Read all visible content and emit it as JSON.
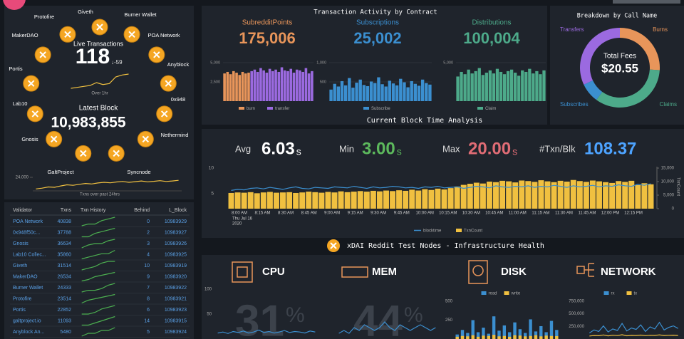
{
  "left_panel": {
    "nodes": [
      "Giveth",
      "Burner Wallet",
      "POA Network",
      "Anyblock",
      "0x948",
      "Nethermind",
      "Syncnode",
      "GaltProject",
      "Gnosis",
      "Lab10",
      "Portis",
      "MakerDAO",
      "Protofire"
    ],
    "live_label": "Live Transactions",
    "live_value": 118,
    "live_delta": "↓-59",
    "live_caption": "Over 1hr",
    "live_history": [
      80,
      85,
      90,
      95,
      110,
      100,
      105,
      140,
      150,
      155
    ],
    "block_label": "Latest Block",
    "block_value": "10,983,855",
    "daily": {
      "caption": "Txns over past 24hrs",
      "ylim": [
        15000,
        30000
      ],
      "yticks": [
        {
          "value": 24000,
          "label": "24,000"
        }
      ],
      "values": [
        17000,
        17500,
        18200,
        18000,
        18800,
        19500,
        19200,
        19800,
        20300,
        20000,
        20600,
        21000,
        20700,
        21200,
        21500,
        21000,
        21400,
        21800,
        21300,
        21600,
        22000,
        21500,
        21800,
        22200
      ]
    }
  },
  "table": {
    "headers": [
      "Validator",
      "Txns",
      "Txn History",
      "Behind",
      "L_Block"
    ],
    "rows": [
      {
        "validator": "POA Network",
        "txns": 40838,
        "history": [
          2,
          3,
          3,
          5,
          6,
          7
        ],
        "behind": 0,
        "l_block": 10983929
      },
      {
        "validator": "0x948f50c...",
        "txns": 37788,
        "history": [
          2,
          2,
          4,
          5,
          6,
          7
        ],
        "behind": 2,
        "l_block": 10983927
      },
      {
        "validator": "Gnosis",
        "txns": 36634,
        "history": [
          1,
          3,
          4,
          4,
          6,
          7
        ],
        "behind": 3,
        "l_block": 10983926
      },
      {
        "validator": "Lab10 Collec...",
        "txns": 35860,
        "history": [
          2,
          3,
          4,
          5,
          5,
          7
        ],
        "behind": 4,
        "l_block": 10983925
      },
      {
        "validator": "Giveth",
        "txns": 31514,
        "history": [
          1,
          2,
          3,
          5,
          6,
          6
        ],
        "behind": 10,
        "l_block": 10983919
      },
      {
        "validator": "MakerDAO",
        "txns": 26534,
        "history": [
          1,
          2,
          4,
          5,
          6,
          7
        ],
        "behind": 9,
        "l_block": 10983920
      },
      {
        "validator": "Burner Wallet",
        "txns": 24333,
        "history": [
          2,
          3,
          3,
          4,
          6,
          7
        ],
        "behind": 7,
        "l_block": 10983922
      },
      {
        "validator": "Protofire",
        "txns": 23514,
        "history": [
          1,
          3,
          4,
          5,
          6,
          7
        ],
        "behind": 8,
        "l_block": 10983921
      },
      {
        "validator": "Portis",
        "txns": 22852,
        "history": [
          2,
          2,
          3,
          5,
          6,
          7
        ],
        "behind": 6,
        "l_block": 10983923
      },
      {
        "validator": "galtproject.io",
        "txns": 11093,
        "history": [
          1,
          1,
          2,
          3,
          4,
          5
        ],
        "behind": 14,
        "l_block": 10983915
      },
      {
        "validator": "Anyblock An...",
        "txns": 5480,
        "history": [
          1,
          2,
          2,
          3,
          3,
          4
        ],
        "behind": 5,
        "l_block": 10983924
      }
    ]
  },
  "activity": {
    "title": "Transaction Activity by Contract",
    "charts": [
      {
        "name": "SubredditPoints",
        "total": "175,006",
        "color": "#e8955a",
        "ylim": [
          0,
          5000
        ],
        "yticks": [
          {
            "value": 5000,
            "label": "5,000"
          },
          {
            "value": 2500,
            "label": "2,500"
          }
        ],
        "series": [
          {
            "name": "burn",
            "color": "#e8955a",
            "values": [
              3600,
              3800,
              3500,
              3900,
              3700,
              3400,
              3800,
              3600,
              3700,
              null,
              null,
              null,
              null,
              null,
              null,
              null,
              null,
              null,
              null,
              null,
              null,
              null,
              null,
              null,
              null,
              null,
              null,
              null,
              null,
              null
            ]
          },
          {
            "name": "transfer",
            "color": "#9b6ae0",
            "values": [
              null,
              null,
              null,
              null,
              null,
              null,
              null,
              null,
              null,
              3900,
              4100,
              3800,
              4300,
              4000,
              3700,
              4200,
              3900,
              4100,
              3800,
              4400,
              4000,
              3900,
              4200,
              3700,
              4100,
              4000,
              3800,
              4300,
              3600,
              3900
            ]
          }
        ]
      },
      {
        "name": "Subscriptions",
        "total": "25,002",
        "color": "#3b8fd0",
        "ylim": [
          0,
          1000
        ],
        "yticks": [
          {
            "value": 1000,
            "label": "1,000"
          },
          500
        ],
        "series": [
          {
            "name": "Subscribe",
            "color": "#3b8fd0",
            "values": [
              300,
              450,
              380,
              520,
              410,
              600,
              350,
              480,
              560,
              420,
              390,
              510,
              470,
              620,
              440,
              380,
              530,
              460,
              410,
              580,
              490,
              360,
              520,
              450,
              400,
              560,
              470,
              430
            ]
          }
        ]
      },
      {
        "name": "Distributions",
        "total": "100,004",
        "color": "#4daa8a",
        "ylim": [
          0,
          5000
        ],
        "yticks": [
          {
            "value": 5000,
            "label": "5,000"
          }
        ],
        "series": [
          {
            "name": "Claim",
            "color": "#4daa8a",
            "values": [
              3200,
              3800,
              3500,
              4100,
              3600,
              3900,
              4300,
              3400,
              3700,
              4000,
              3600,
              4200,
              3800,
              3500,
              3900,
              4100,
              3700,
              3300,
              4000,
              3800,
              4200,
              3600,
              3900,
              3500,
              4000
            ]
          }
        ]
      }
    ]
  },
  "breakdown": {
    "title": "Breakdown by Call Name",
    "center_label": "Total Fees",
    "center_value": "$20.55",
    "slices": [
      {
        "name": "Burns",
        "color": "#e8955a",
        "value": 26
      },
      {
        "name": "Claims",
        "color": "#4daa8a",
        "value": 34
      },
      {
        "name": "Subscribes",
        "color": "#3b8fd0",
        "value": 8
      },
      {
        "name": "Transfers",
        "color": "#9b6ae0",
        "value": 32
      }
    ]
  },
  "block_time": {
    "title": "Current Block Time Analysis",
    "stats": [
      {
        "label": "Avg",
        "value": "6.03",
        "unit": "s",
        "color": "#ffffff"
      },
      {
        "label": "Min",
        "value": "3.00",
        "unit": "s",
        "color": "#5cb85c"
      },
      {
        "label": "Max",
        "value": "20.00",
        "unit": "s",
        "color": "#e06c75"
      },
      {
        "label": "#Txn/Blk",
        "value": "108.37",
        "color": "#4da3ff"
      }
    ],
    "ylim": [
      2,
      10
    ],
    "yticks": [
      10,
      5
    ],
    "y2lim": [
      0,
      15000
    ],
    "y2ticks": [
      {
        "value": 15000,
        "label": "15,000"
      },
      {
        "value": 10000,
        "label": "10,000"
      },
      {
        "value": 5000,
        "label": "5,000"
      },
      0
    ],
    "y2label": "TxnCount",
    "xticks": [
      "8:00 AM",
      "8:15 AM",
      "8:30 AM",
      "8:45 AM",
      "9:00 AM",
      "9:15 AM",
      "9:30 AM",
      "9:45 AM",
      "10:00 AM",
      "10:15 AM",
      "10:30 AM",
      "10:45 AM",
      "11:00 AM",
      "11:15 AM",
      "11:30 AM",
      "11:45 AM",
      "12:00 PM",
      "12:15 PM"
    ],
    "date": "Thu Jul 16",
    "year": "2020",
    "series": [
      {
        "name": "blocktime",
        "color": "#3b8fd0",
        "values": [
          5.6,
          5.8,
          5.7,
          6.0,
          6.1,
          5.9,
          6.2,
          6.0,
          5.8,
          6.1,
          6.3,
          6.0,
          5.9,
          6.2,
          6.1,
          6.0,
          6.3,
          6.2,
          6.1,
          6.4,
          6.2,
          6.0,
          6.3,
          6.1,
          6.2,
          6.4,
          6.3,
          6.1,
          6.2,
          6.0,
          6.3,
          6.2,
          6.4,
          6.1,
          6.2,
          6.3,
          6.0,
          6.2,
          6.4,
          6.3,
          6.1,
          6.5,
          6.3,
          6.2,
          6.4,
          6.3,
          6.5,
          6.2,
          6.4,
          6.3,
          6.6,
          6.4,
          6.2,
          6.5,
          6.3,
          6.4,
          6.6,
          6.3,
          6.5,
          6.4,
          6.7,
          6.5,
          6.4,
          6.8,
          6.6,
          6.9
        ]
      },
      {
        "name": "TxnCount",
        "color": "#f0c040",
        "axis": "y2",
        "values": [
          5800,
          6000,
          5900,
          6100,
          5700,
          6000,
          6200,
          5900,
          6000,
          6100,
          5800,
          6000,
          6300,
          6100,
          5900,
          6200,
          6000,
          6400,
          6100,
          6300,
          6500,
          6300,
          6600,
          6400,
          6700,
          6500,
          6800,
          6600,
          7000,
          6700,
          7200,
          6900,
          7400,
          7100,
          7600,
          8200,
          8800,
          9200,
          9600,
          9300,
          10000,
          9800,
          10300,
          10100,
          9700,
          10400,
          10200,
          9900,
          10500,
          10100,
          9800,
          10300,
          10000,
          10600,
          10200,
          9900,
          10400,
          10100,
          9800,
          9500,
          10200,
          9900,
          10300,
          8700,
          9400,
          9000
        ]
      }
    ]
  },
  "infra": {
    "title": "xDAI Reddit Test Nodes - Infrastructure Health",
    "cpu": {
      "title": "CPU",
      "usage": 31,
      "unit": "%",
      "ylim": [
        0,
        100
      ],
      "yticks": [
        100,
        50
      ],
      "values": [
        12,
        14,
        11,
        15,
        13,
        16,
        12,
        14,
        18,
        13,
        15,
        12,
        14,
        17,
        13,
        15,
        14,
        12,
        16,
        14
      ]
    },
    "mem": {
      "title": "MEM",
      "usage": 44,
      "unit": "%",
      "values": [
        42,
        43,
        42,
        44,
        43,
        45,
        44,
        43,
        44,
        46,
        44,
        43,
        45,
        44,
        43,
        44,
        45,
        44,
        43,
        44
      ]
    },
    "disk": {
      "title": "DISK",
      "ylim": [
        0,
        500
      ],
      "yticks": [
        500,
        250
      ],
      "series": [
        {
          "name": "read",
          "color": "#3b8fd0",
          "values": [
            60,
            120,
            80,
            250,
            90,
            150,
            70,
            300,
            110,
            180,
            90,
            220,
            130,
            80,
            260,
            100,
            170,
            90,
            240,
            120
          ]
        },
        {
          "name": "write",
          "color": "#f0c040",
          "values": [
            30,
            40,
            35,
            50,
            30,
            45,
            40,
            55,
            35,
            40,
            30,
            50,
            45,
            35,
            40,
            50,
            35,
            45,
            40,
            38
          ]
        }
      ]
    },
    "network": {
      "title": "NETWORK",
      "ylim": [
        0,
        750000
      ],
      "yticks": [
        {
          "value": 750000,
          "label": "750,000"
        },
        {
          "value": 500000,
          "label": "500,000"
        },
        {
          "value": 250000,
          "label": "250,000"
        }
      ],
      "series": [
        {
          "name": "rx",
          "color": "#3b8fd0",
          "values": [
            120000,
            180000,
            150000,
            260000,
            140000,
            200000,
            170000,
            310000,
            160000,
            220000,
            190000,
            280000,
            150000,
            240000,
            200000,
            330000,
            180000,
            230000,
            260000,
            210000
          ]
        },
        {
          "name": "tx",
          "color": "#f0c040",
          "values": [
            60000,
            70000,
            65000,
            80000,
            62000,
            75000,
            68000,
            85000,
            64000,
            72000,
            70000,
            78000,
            66000,
            74000,
            71000,
            82000,
            69000,
            73000,
            76000,
            70000
          ]
        }
      ]
    }
  }
}
